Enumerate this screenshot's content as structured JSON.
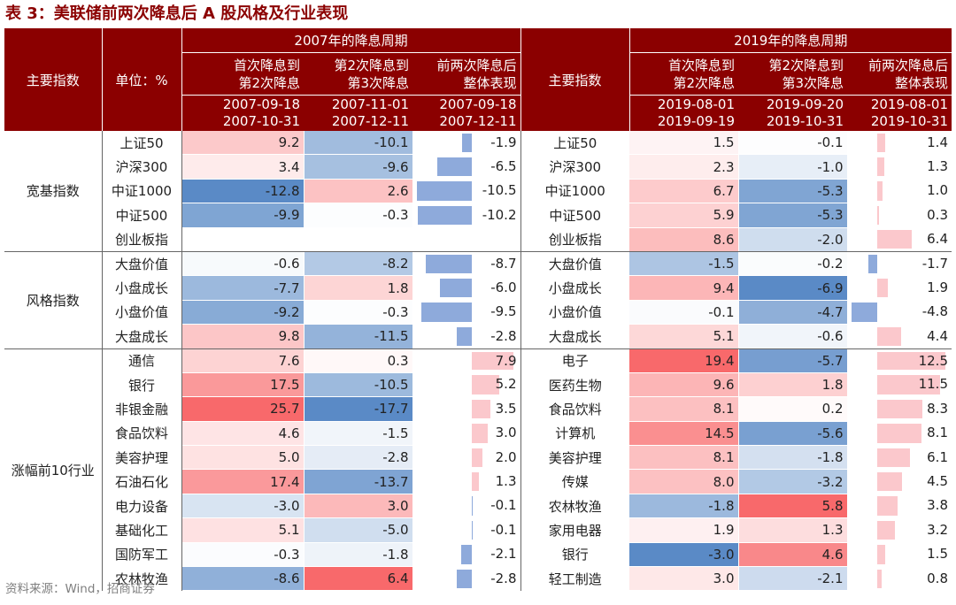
{
  "title": "表 3：美联储前两次降息后 A 股风格及行业表现",
  "source": "资料来源：Wind，招商证券",
  "header": {
    "col_main_index": "主要指数",
    "col_unit": "单位：%",
    "period_2007": "2007年的降息周期",
    "period_2019": "2019年的降息周期",
    "p07": [
      {
        "line1": "首次降息到",
        "line2": "第2次降息",
        "d1": "2007-09-18",
        "d2": "2007-10-31"
      },
      {
        "line1": "第2次降息到",
        "line2": "第3次降息",
        "d1": "2007-11-01",
        "d2": "2007-12-11"
      },
      {
        "line1": "前两次降息后",
        "line2": "整体表现",
        "d1": "2007-09-18",
        "d2": "2007-12-11"
      }
    ],
    "col_main_index_2": "主要指数",
    "p19": [
      {
        "line1": "首次降息到",
        "line2": "第2次降息",
        "d1": "2019-08-01",
        "d2": "2019-09-19"
      },
      {
        "line1": "第2次降息到",
        "line2": "第3次降息",
        "d1": "2019-09-20",
        "d2": "2019-10-31"
      },
      {
        "line1": "前两次降息后",
        "line2": "整体表现",
        "d1": "2019-08-01",
        "d2": "2019-10-31"
      }
    ]
  },
  "colors": {
    "header_bg": "#8b0000",
    "positive": "#f8696b",
    "negative": "#5a8ac6",
    "bar_pos": "#fbc8cc",
    "bar_neg": "#8eaadb"
  },
  "groups": [
    {
      "label": "宽基指数",
      "rows": [
        {
          "n07": "上证50",
          "a": "9.2",
          "b": "-10.1",
          "c": "-1.9",
          "n19": "上证50",
          "d": "1.5",
          "e": "-0.1",
          "f": "1.4"
        },
        {
          "n07": "沪深300",
          "a": "3.4",
          "b": "-9.6",
          "c": "-6.5",
          "n19": "沪深300",
          "d": "2.3",
          "e": "-1.0",
          "f": "1.3"
        },
        {
          "n07": "中证1000",
          "a": "-12.8",
          "b": "2.6",
          "c": "-10.5",
          "n19": "中证1000",
          "d": "6.7",
          "e": "-5.3",
          "f": "1.0"
        },
        {
          "n07": "中证500",
          "a": "-9.9",
          "b": "-0.3",
          "c": "-10.2",
          "n19": "中证500",
          "d": "5.9",
          "e": "-5.3",
          "f": "0.3"
        },
        {
          "n07": "创业板指",
          "a": "",
          "b": "",
          "c": "",
          "n19": "创业板指",
          "d": "8.6",
          "e": "-2.0",
          "f": "6.4"
        }
      ]
    },
    {
      "label": "风格指数",
      "rows": [
        {
          "n07": "大盘价值",
          "a": "-0.6",
          "b": "-8.2",
          "c": "-8.7",
          "n19": "大盘价值",
          "d": "-1.5",
          "e": "-0.2",
          "f": "-1.7"
        },
        {
          "n07": "小盘成长",
          "a": "-7.7",
          "b": "1.8",
          "c": "-6.0",
          "n19": "小盘成长",
          "d": "9.4",
          "e": "-6.9",
          "f": "1.9"
        },
        {
          "n07": "小盘价值",
          "a": "-9.2",
          "b": "-0.3",
          "c": "-9.5",
          "n19": "小盘价值",
          "d": "-0.1",
          "e": "-4.7",
          "f": "-4.8"
        },
        {
          "n07": "大盘成长",
          "a": "9.8",
          "b": "-11.5",
          "c": "-2.8",
          "n19": "大盘成长",
          "d": "5.1",
          "e": "-0.6",
          "f": "4.4"
        }
      ]
    },
    {
      "label": "涨幅前10行业",
      "rows": [
        {
          "n07": "通信",
          "a": "7.6",
          "b": "0.3",
          "c": "7.9",
          "n19": "电子",
          "d": "19.4",
          "e": "-5.7",
          "f": "12.5"
        },
        {
          "n07": "银行",
          "a": "17.5",
          "b": "-10.5",
          "c": "5.2",
          "n19": "医药生物",
          "d": "9.6",
          "e": "1.8",
          "f": "11.5"
        },
        {
          "n07": "非银金融",
          "a": "25.7",
          "b": "-17.7",
          "c": "3.5",
          "n19": "食品饮料",
          "d": "8.1",
          "e": "0.2",
          "f": "8.3"
        },
        {
          "n07": "食品饮料",
          "a": "4.6",
          "b": "-1.5",
          "c": "3.0",
          "n19": "计算机",
          "d": "14.5",
          "e": "-5.6",
          "f": "8.1"
        },
        {
          "n07": "美容护理",
          "a": "5.0",
          "b": "-2.8",
          "c": "2.0",
          "n19": "美容护理",
          "d": "8.1",
          "e": "-1.8",
          "f": "6.1"
        },
        {
          "n07": "石油石化",
          "a": "17.4",
          "b": "-13.7",
          "c": "1.3",
          "n19": "传媒",
          "d": "8.0",
          "e": "-3.2",
          "f": "4.5"
        },
        {
          "n07": "电力设备",
          "a": "-3.0",
          "b": "3.0",
          "c": "-0.1",
          "n19": "农林牧渔",
          "d": "-1.8",
          "e": "5.8",
          "f": "3.8"
        },
        {
          "n07": "基础化工",
          "a": "5.1",
          "b": "-5.0",
          "c": "-0.1",
          "n19": "家用电器",
          "d": "1.9",
          "e": "1.3",
          "f": "3.2"
        },
        {
          "n07": "国防军工",
          "a": "-0.3",
          "b": "-1.8",
          "c": "-2.1",
          "n19": "银行",
          "d": "-3.0",
          "e": "4.6",
          "f": "1.5"
        },
        {
          "n07": "农林牧渔",
          "a": "-8.6",
          "b": "6.4",
          "c": "-2.8",
          "n19": "轻工制造",
          "d": "3.0",
          "e": "-2.1",
          "f": "0.8"
        }
      ]
    }
  ]
}
